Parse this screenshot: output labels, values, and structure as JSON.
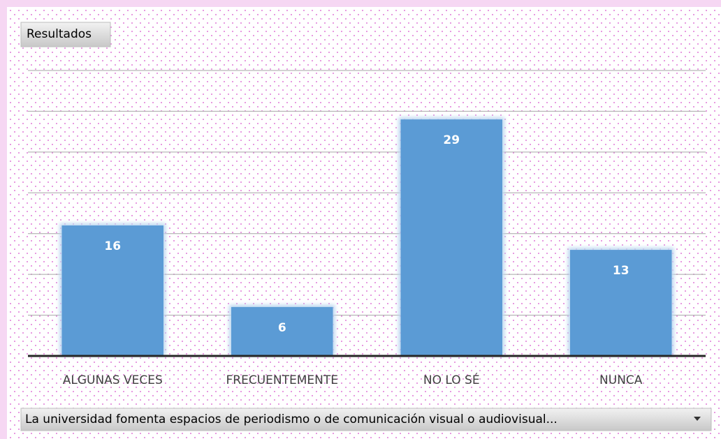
{
  "field_buttons": {
    "values": "Resultados",
    "axis": "La universidad fomenta espacios de periodismo o de comunicación visual o audiovisual..."
  },
  "chart_data": {
    "type": "bar",
    "categories": [
      "ALGUNAS VECES",
      "FRECUENTEMENTE",
      "NO LO SÉ",
      "NUNCA"
    ],
    "values": [
      16,
      6,
      29,
      13
    ],
    "color": "#5b9bd5",
    "ylim": [
      0,
      35
    ],
    "yticks": [
      0,
      5,
      10,
      15,
      20,
      25,
      30,
      35
    ],
    "grid": true
  }
}
